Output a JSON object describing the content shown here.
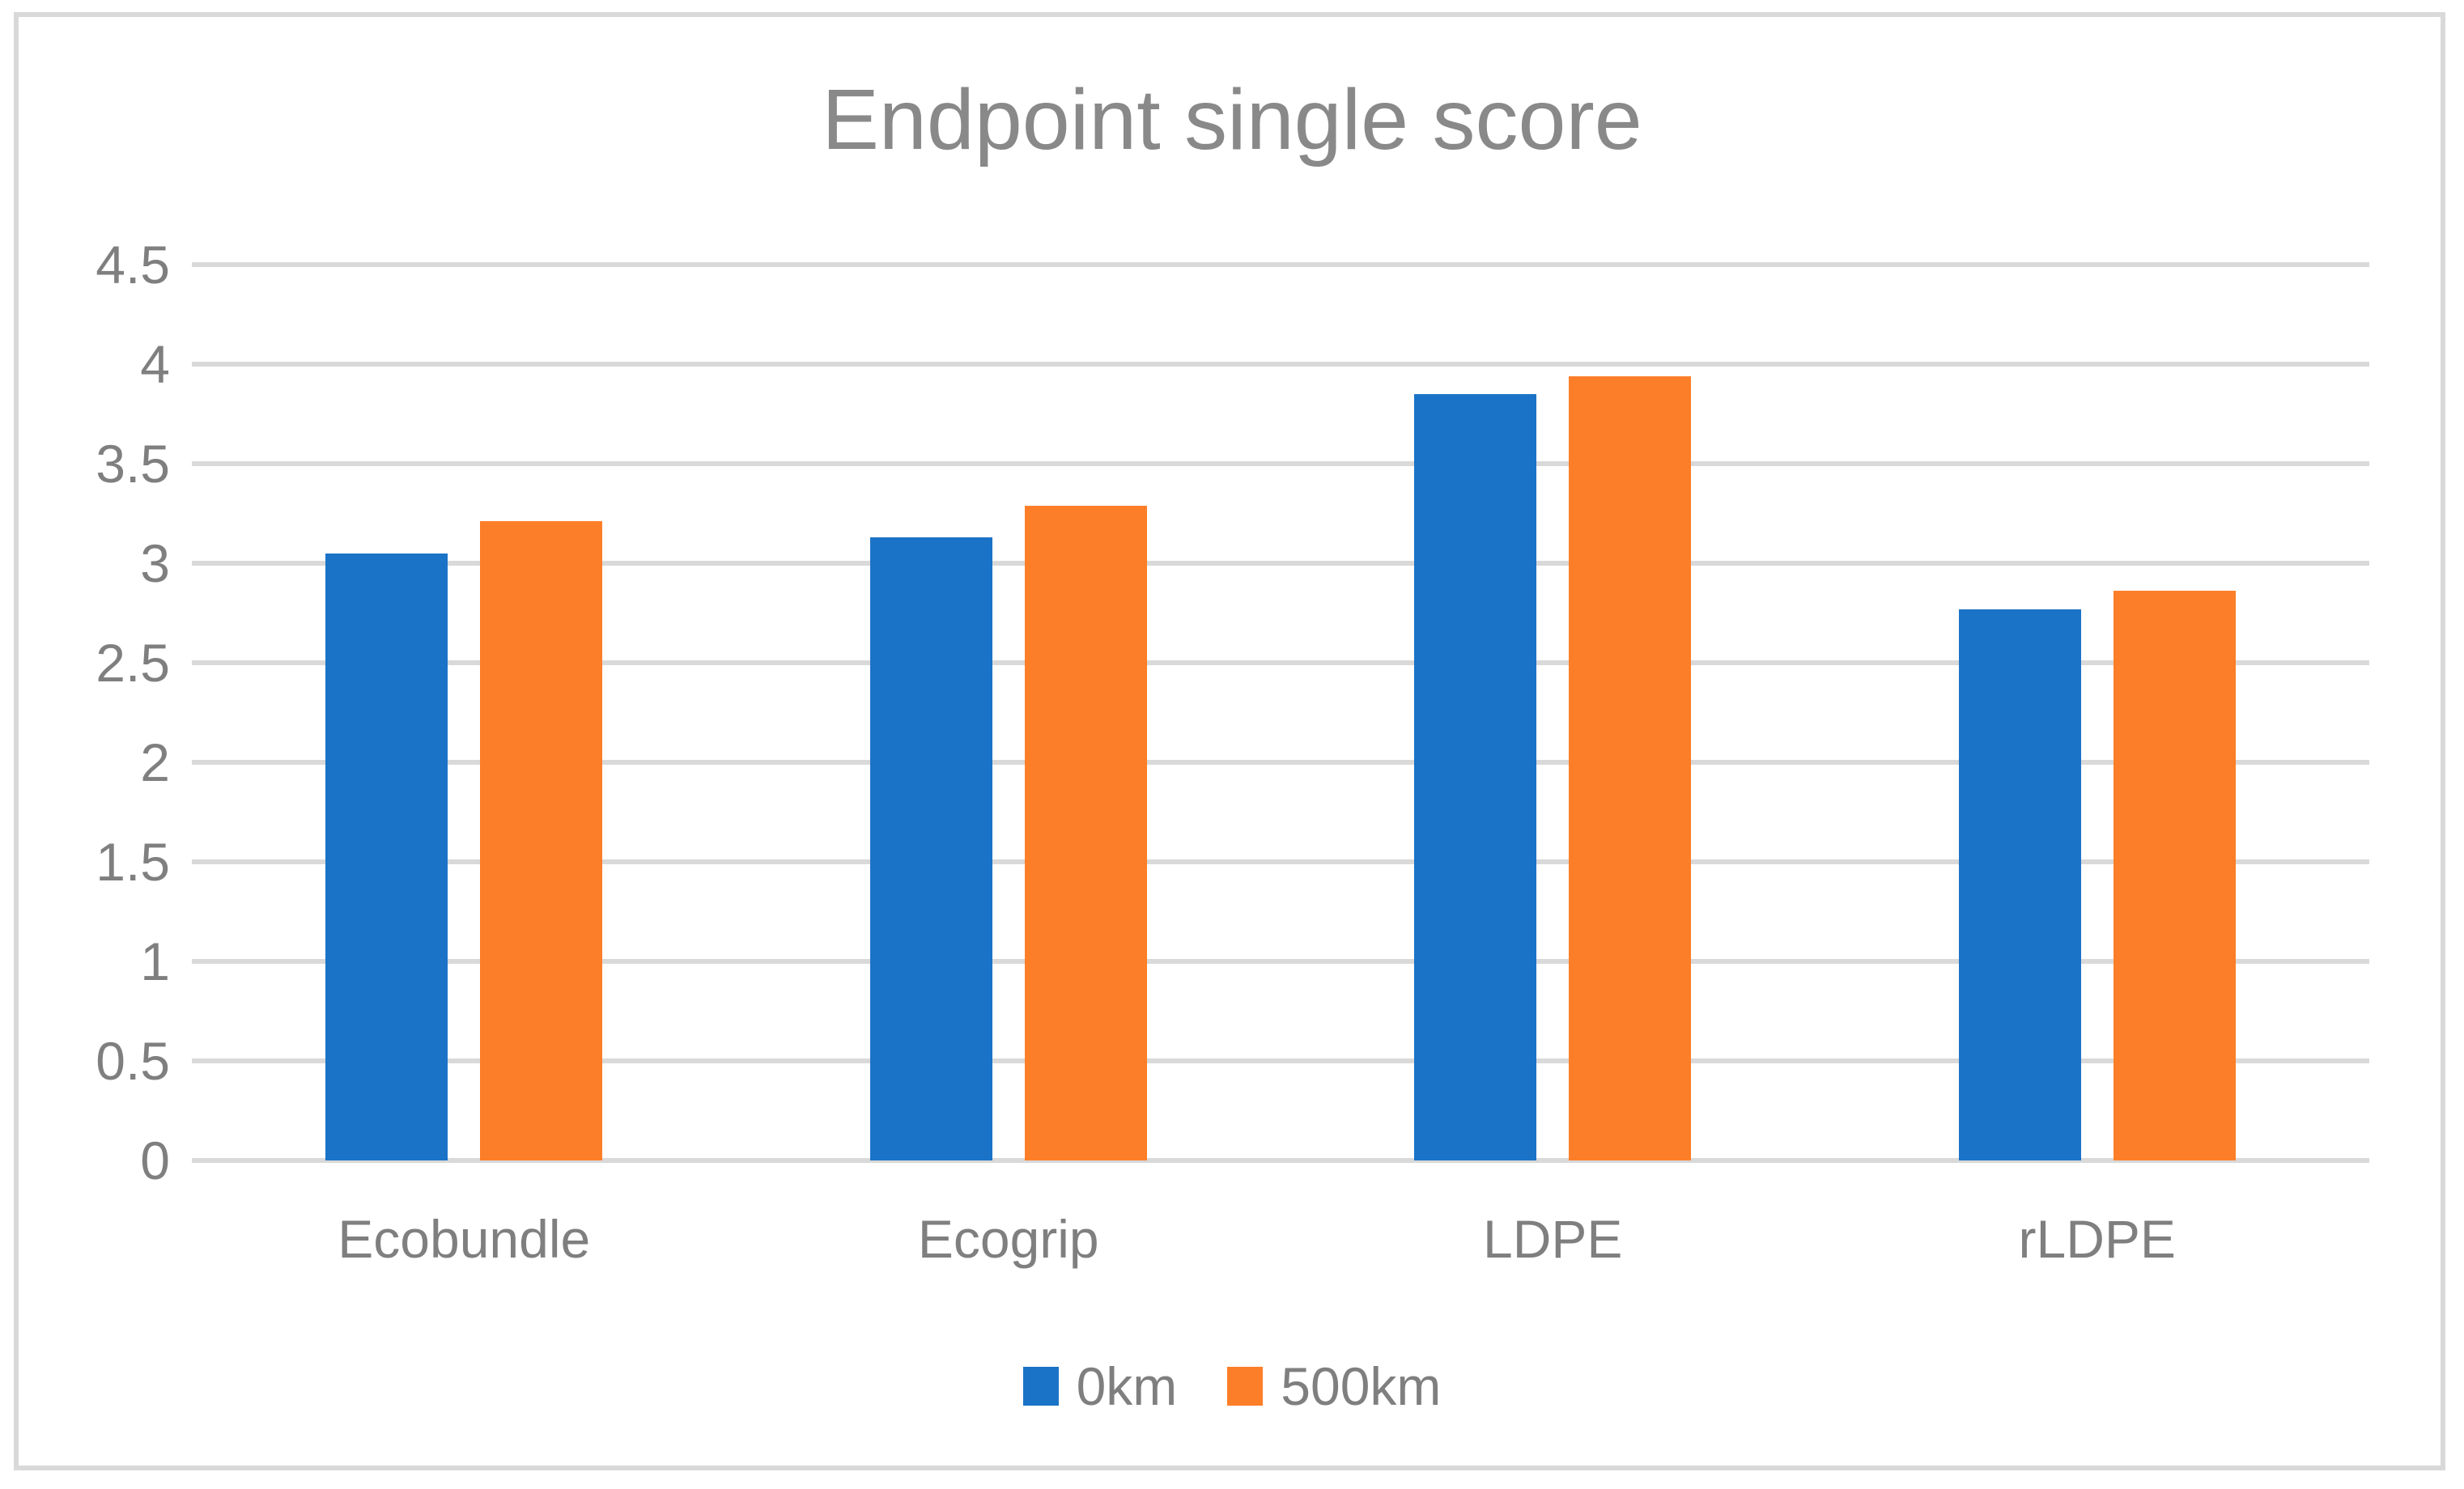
{
  "chart_data": {
    "type": "bar",
    "title": "Endpoint single score",
    "categories": [
      "Ecobundle",
      "Ecogrip",
      "LDPE",
      "rLDPE"
    ],
    "series": [
      {
        "name": "0km",
        "color": "#1B73C7",
        "values": [
          3.05,
          3.13,
          3.85,
          2.77
        ]
      },
      {
        "name": "500km",
        "color": "#FD7E28",
        "values": [
          3.21,
          3.29,
          3.94,
          2.86
        ]
      }
    ],
    "ylim": [
      0,
      4.5
    ],
    "ytick_step": 0.5,
    "ytick_labels": [
      "0",
      "0.5",
      "1",
      "1.5",
      "2",
      "2.5",
      "3",
      "3.5",
      "4",
      "4.5"
    ],
    "xlabel": "",
    "ylabel": "",
    "grid": true,
    "legend_position": "bottom",
    "colors": {
      "title_text": "#898989",
      "axis_text": "#7F7F7F",
      "gridline": "#D9D9D9",
      "frame_border": "#D9D9D9",
      "background": "#FFFFFF"
    }
  }
}
